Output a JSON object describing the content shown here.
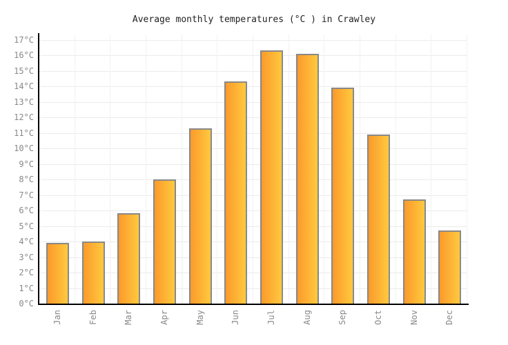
{
  "title": "Average monthly temperatures (°C ) in Crawley",
  "chart_data": {
    "type": "bar",
    "title": "Average monthly temperatures (°C ) in Crawley",
    "categories": [
      "Jan",
      "Feb",
      "Mar",
      "Apr",
      "May",
      "Jun",
      "Jul",
      "Aug",
      "Sep",
      "Oct",
      "Nov",
      "Dec"
    ],
    "values": [
      3.9,
      4.0,
      5.8,
      8.0,
      11.3,
      14.3,
      16.3,
      16.1,
      13.9,
      10.9,
      6.7,
      4.7
    ],
    "xlabel": "",
    "ylabel": "",
    "ylim": [
      0,
      17
    ],
    "y_tick_step": 1,
    "y_tick_suffix": "°C",
    "grid": true,
    "legend": false,
    "colors": {
      "bar_gradient_start": "#fb9a2c",
      "bar_gradient_end": "#ffc93e",
      "bar_border": "#888888",
      "axis": "#000000",
      "hgrid": "#ebebeb",
      "vgrid": "#f1f1f1",
      "tick_label": "#888888",
      "title": "#222222",
      "background": "#ffffff"
    }
  }
}
